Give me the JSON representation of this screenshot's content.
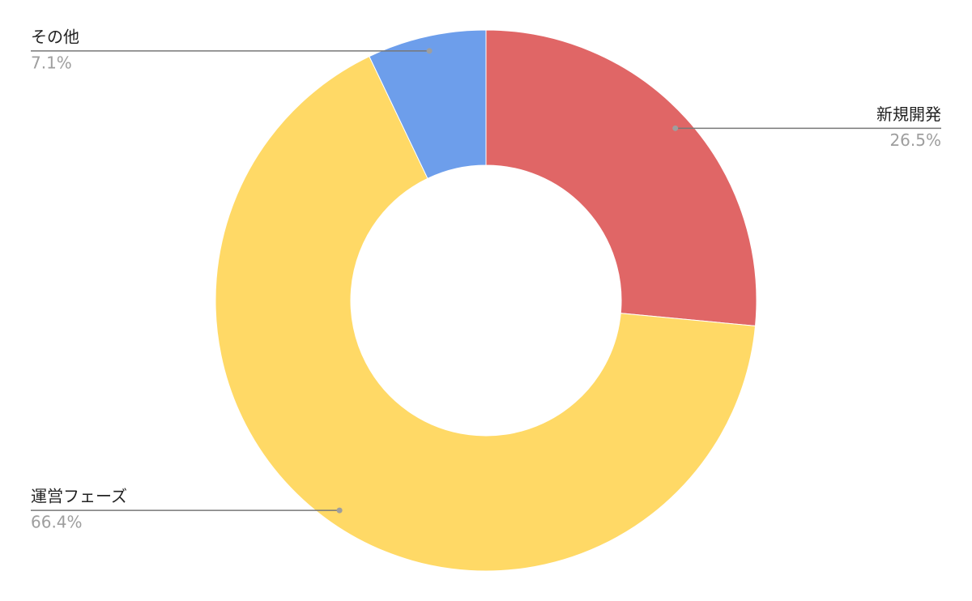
{
  "chart_data": {
    "type": "donut",
    "categories": [
      "新規開発",
      "運営フェーズ",
      "その他"
    ],
    "values": [
      26.5,
      66.4,
      7.1
    ],
    "value_labels": [
      "26.5%",
      "66.4%",
      "7.1%"
    ],
    "colors": [
      "#e06666",
      "#ffd966",
      "#6d9eeb"
    ]
  }
}
